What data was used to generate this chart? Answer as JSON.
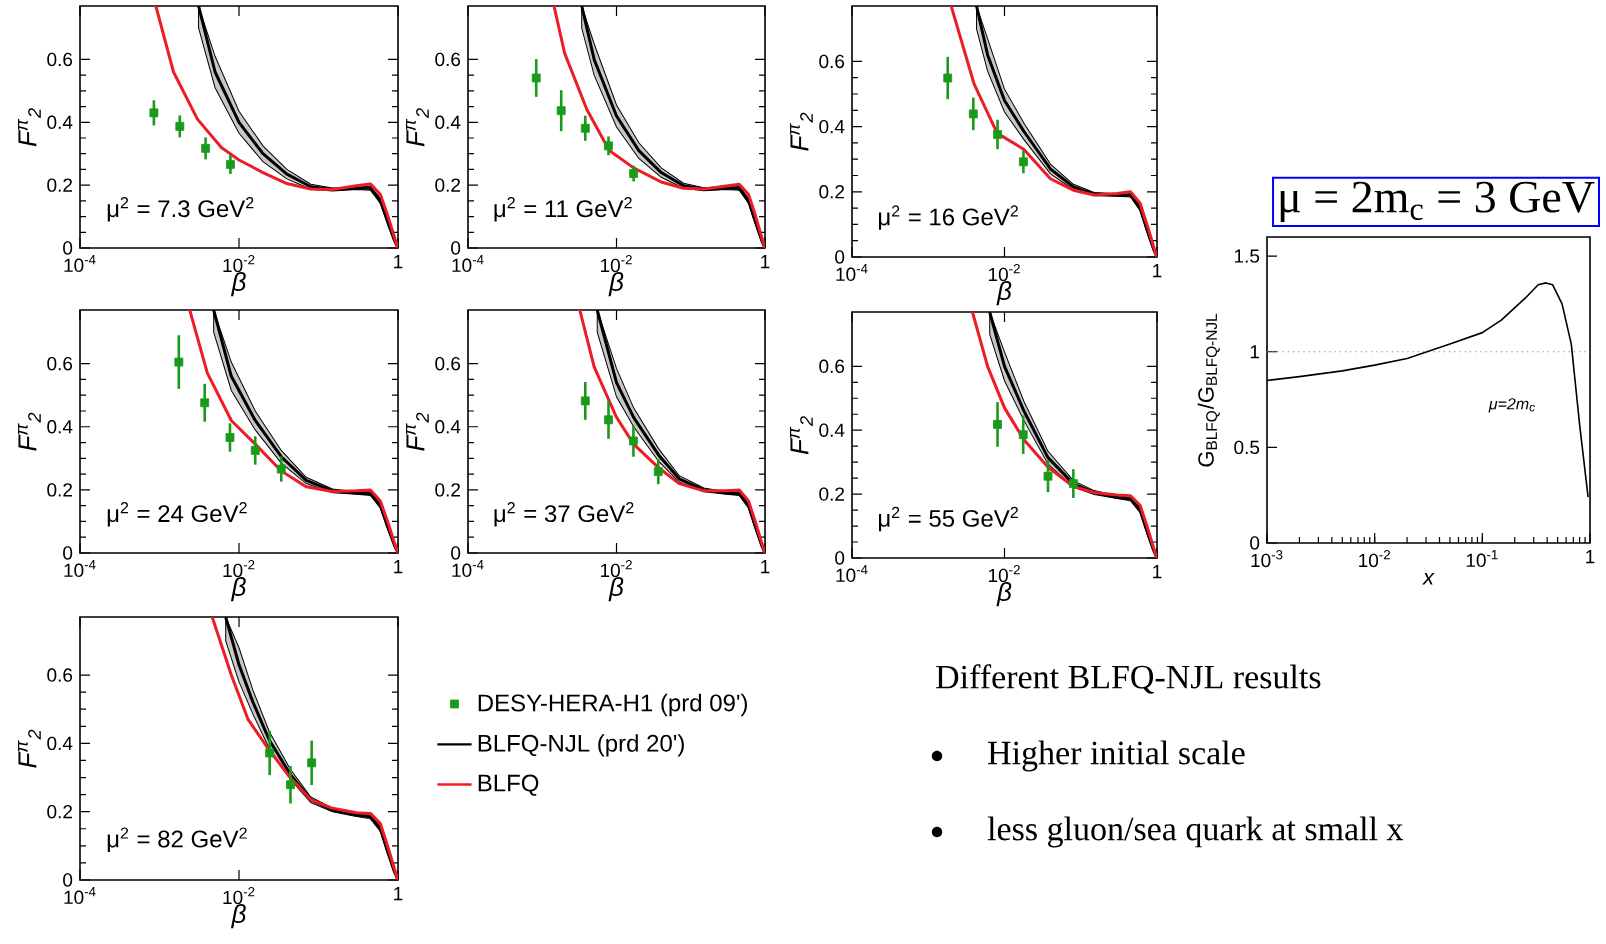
{
  "chart_data": [
    {
      "type": "line",
      "xlabel": "β",
      "ylabel": "F$^{π}$$_{2}$",
      "log": "x",
      "xlim": [
        0.0001,
        1
      ],
      "ylim": [
        0,
        0.77
      ],
      "xticks": [
        {
          "value": 0.0001,
          "label": "10$^{-4}$"
        },
        {
          "value": 0.01,
          "label": "10$^{-2}$"
        },
        1
      ],
      "yticks": [
        0,
        0.2,
        0.4,
        0.6
      ],
      "annotations": [
        "μ$^{2}$ = 7.3 GeV$^{2}$"
      ],
      "series": [
        {
          "type": "scatter",
          "marker": "square",
          "color": "#1a9a1a",
          "x": [
            0.00085,
            0.0018,
            0.0038,
            0.0078
          ],
          "values": [
            0.43,
            0.387,
            0.317,
            0.266
          ],
          "errors": [
            0.04,
            0.035,
            0.035,
            0.03
          ]
        },
        {
          "type": "line",
          "color": "#000000",
          "x": [
            0.0031,
            0.005,
            0.01,
            0.02,
            0.04,
            0.08,
            0.15,
            0.3,
            0.45,
            0.6,
            0.75,
            0.9,
            1
          ],
          "values": [
            0.77,
            0.56,
            0.4,
            0.3,
            0.235,
            0.195,
            0.186,
            0.19,
            0.19,
            0.15,
            0.08,
            0.025,
            0
          ],
          "lower": [
            0.7,
            0.51,
            0.365,
            0.275,
            0.22,
            0.187,
            0.181,
            0.186,
            0.184,
            0.142,
            0.072,
            0.02,
            0
          ],
          "upper": [
            0.77,
            0.61,
            0.435,
            0.325,
            0.25,
            0.203,
            0.191,
            0.194,
            0.196,
            0.158,
            0.088,
            0.03,
            0
          ]
        },
        {
          "type": "line",
          "color": "#ee1c25",
          "x": [
            0.0009,
            0.0015,
            0.003,
            0.006,
            0.01,
            0.02,
            0.04,
            0.08,
            0.15,
            0.3,
            0.45,
            0.6,
            0.75,
            0.9,
            1
          ],
          "values": [
            0.77,
            0.56,
            0.41,
            0.32,
            0.28,
            0.24,
            0.205,
            0.188,
            0.186,
            0.198,
            0.204,
            0.17,
            0.1,
            0.035,
            0
          ]
        }
      ]
    },
    {
      "type": "line",
      "xlabel": "β",
      "ylabel": "F$^{π}$$_{2}$",
      "log": "x",
      "xlim": [
        0.0001,
        1
      ],
      "ylim": [
        0,
        0.77
      ],
      "xticks": [
        {
          "value": 0.0001,
          "label": "10$^{-4}$"
        },
        {
          "value": 0.01,
          "label": "10$^{-2}$"
        },
        1
      ],
      "yticks": [
        0,
        0.2,
        0.4,
        0.6
      ],
      "annotations": [
        "μ$^{2}$ = 11 GeV$^{2}$"
      ],
      "series": [
        {
          "type": "scatter",
          "marker": "square",
          "color": "#1a9a1a",
          "x": [
            0.00083,
            0.0018,
            0.0038,
            0.0078,
            0.017
          ],
          "values": [
            0.541,
            0.437,
            0.381,
            0.325,
            0.237
          ],
          "errors": [
            0.06,
            0.065,
            0.04,
            0.03,
            0.025
          ]
        },
        {
          "type": "line",
          "color": "#000000",
          "x": [
            0.0034,
            0.005,
            0.01,
            0.02,
            0.04,
            0.08,
            0.15,
            0.3,
            0.45,
            0.6,
            0.75,
            0.9,
            1
          ],
          "values": [
            0.77,
            0.6,
            0.42,
            0.31,
            0.24,
            0.198,
            0.187,
            0.19,
            0.19,
            0.15,
            0.08,
            0.025,
            0
          ],
          "lower": [
            0.7,
            0.55,
            0.385,
            0.285,
            0.225,
            0.19,
            0.182,
            0.186,
            0.184,
            0.142,
            0.072,
            0.02,
            0
          ],
          "upper": [
            0.77,
            0.65,
            0.455,
            0.335,
            0.255,
            0.206,
            0.192,
            0.194,
            0.196,
            0.158,
            0.088,
            0.03,
            0
          ]
        },
        {
          "type": "line",
          "color": "#ee1c25",
          "x": [
            0.00144,
            0.002,
            0.004,
            0.008,
            0.017,
            0.04,
            0.08,
            0.15,
            0.3,
            0.45,
            0.6,
            0.75,
            0.9,
            1
          ],
          "values": [
            0.77,
            0.62,
            0.44,
            0.31,
            0.255,
            0.21,
            0.19,
            0.188,
            0.197,
            0.203,
            0.17,
            0.1,
            0.035,
            0
          ]
        }
      ]
    },
    {
      "type": "line",
      "xlabel": "β",
      "ylabel": "F$^{π}$$_{2}$",
      "log": "x",
      "xlim": [
        0.0001,
        1
      ],
      "ylim": [
        0,
        0.77
      ],
      "xticks": [
        {
          "value": 0.0001,
          "label": "10$^{-4}$"
        },
        {
          "value": 0.01,
          "label": "10$^{-2}$"
        },
        1
      ],
      "yticks": [
        0,
        0.2,
        0.4,
        0.6
      ],
      "annotations": [
        "μ$^{2}$ = 16 GeV$^{2}$"
      ],
      "series": [
        {
          "type": "scatter",
          "marker": "square",
          "color": "#1a9a1a",
          "x": [
            0.0018,
            0.0039,
            0.0081,
            0.0177
          ],
          "values": [
            0.549,
            0.439,
            0.376,
            0.292
          ],
          "errors": [
            0.065,
            0.05,
            0.045,
            0.035
          ]
        },
        {
          "type": "line",
          "color": "#000000",
          "x": [
            0.0043,
            0.006,
            0.01,
            0.018,
            0.04,
            0.08,
            0.15,
            0.3,
            0.45,
            0.6,
            0.75,
            0.9,
            1
          ],
          "values": [
            0.77,
            0.62,
            0.48,
            0.385,
            0.27,
            0.215,
            0.193,
            0.19,
            0.19,
            0.15,
            0.08,
            0.025,
            0
          ],
          "lower": [
            0.7,
            0.57,
            0.445,
            0.36,
            0.255,
            0.207,
            0.188,
            0.186,
            0.184,
            0.142,
            0.072,
            0.02,
            0
          ],
          "upper": [
            0.77,
            0.67,
            0.515,
            0.41,
            0.285,
            0.223,
            0.198,
            0.194,
            0.196,
            0.158,
            0.088,
            0.03,
            0
          ]
        },
        {
          "type": "line",
          "color": "#ee1c25",
          "x": [
            0.002,
            0.004,
            0.008,
            0.018,
            0.04,
            0.08,
            0.15,
            0.3,
            0.45,
            0.6,
            0.75,
            0.9,
            1
          ],
          "values": [
            0.77,
            0.53,
            0.38,
            0.33,
            0.24,
            0.205,
            0.19,
            0.195,
            0.2,
            0.165,
            0.095,
            0.033,
            0
          ]
        }
      ]
    },
    {
      "type": "line",
      "xlabel": "β",
      "ylabel": "F$^{π}$$_{2}$",
      "log": "x",
      "xlim": [
        0.0001,
        1
      ],
      "ylim": [
        0,
        0.77
      ],
      "xticks": [
        {
          "value": 0.0001,
          "label": "10$^{-4}$"
        },
        {
          "value": 0.01,
          "label": "10$^{-2}$"
        },
        1
      ],
      "yticks": [
        0,
        0.2,
        0.4,
        0.6
      ],
      "annotations": [
        "μ$^{2}$ = 24 GeV$^{2}$"
      ],
      "series": [
        {
          "type": "scatter",
          "marker": "square",
          "color": "#1a9a1a",
          "x": [
            0.00175,
            0.0037,
            0.0077,
            0.016,
            0.034
          ],
          "values": [
            0.605,
            0.476,
            0.366,
            0.325,
            0.266
          ],
          "errors": [
            0.085,
            0.06,
            0.045,
            0.045,
            0.04
          ]
        },
        {
          "type": "line",
          "color": "#000000",
          "x": [
            0.0048,
            0.008,
            0.016,
            0.034,
            0.07,
            0.15,
            0.3,
            0.45,
            0.6,
            0.75,
            0.9,
            1
          ],
          "values": [
            0.77,
            0.56,
            0.42,
            0.305,
            0.23,
            0.197,
            0.19,
            0.188,
            0.15,
            0.08,
            0.025,
            0
          ],
          "lower": [
            0.7,
            0.515,
            0.39,
            0.285,
            0.22,
            0.191,
            0.186,
            0.182,
            0.142,
            0.072,
            0.02,
            0
          ],
          "upper": [
            0.77,
            0.605,
            0.45,
            0.325,
            0.24,
            0.203,
            0.194,
            0.194,
            0.158,
            0.088,
            0.03,
            0
          ]
        },
        {
          "type": "line",
          "color": "#ee1c25",
          "x": [
            0.0024,
            0.004,
            0.008,
            0.016,
            0.034,
            0.07,
            0.15,
            0.3,
            0.45,
            0.6,
            0.75,
            0.9,
            1
          ],
          "values": [
            0.77,
            0.57,
            0.42,
            0.345,
            0.26,
            0.21,
            0.195,
            0.197,
            0.2,
            0.165,
            0.095,
            0.033,
            0
          ]
        }
      ]
    },
    {
      "type": "line",
      "xlabel": "β",
      "ylabel": "F$^{π}$$_{2}$",
      "log": "x",
      "xlim": [
        0.0001,
        1
      ],
      "ylim": [
        0,
        0.77
      ],
      "xticks": [
        {
          "value": 0.0001,
          "label": "10$^{-4}$"
        },
        {
          "value": 0.01,
          "label": "10$^{-2}$"
        },
        1
      ],
      "yticks": [
        0,
        0.2,
        0.4,
        0.6
      ],
      "annotations": [
        "μ$^{2}$ = 37 GeV$^{2}$"
      ],
      "series": [
        {
          "type": "scatter",
          "marker": "square",
          "color": "#1a9a1a",
          "x": [
            0.0038,
            0.0078,
            0.0169,
            0.0365
          ],
          "values": [
            0.482,
            0.422,
            0.355,
            0.258
          ],
          "errors": [
            0.06,
            0.06,
            0.05,
            0.04
          ]
        },
        {
          "type": "line",
          "color": "#000000",
          "x": [
            0.0055,
            0.01,
            0.017,
            0.037,
            0.07,
            0.15,
            0.3,
            0.45,
            0.6,
            0.75,
            0.9,
            1
          ],
          "values": [
            0.77,
            0.54,
            0.43,
            0.31,
            0.235,
            0.2,
            0.19,
            0.188,
            0.15,
            0.08,
            0.025,
            0
          ],
          "lower": [
            0.7,
            0.495,
            0.4,
            0.29,
            0.225,
            0.194,
            0.186,
            0.182,
            0.142,
            0.072,
            0.02,
            0
          ],
          "upper": [
            0.77,
            0.585,
            0.46,
            0.33,
            0.245,
            0.206,
            0.194,
            0.194,
            0.158,
            0.088,
            0.03,
            0
          ]
        },
        {
          "type": "line",
          "color": "#ee1c25",
          "x": [
            0.0032,
            0.005,
            0.01,
            0.017,
            0.037,
            0.07,
            0.15,
            0.3,
            0.45,
            0.6,
            0.75,
            0.9,
            1
          ],
          "values": [
            0.77,
            0.59,
            0.43,
            0.345,
            0.27,
            0.22,
            0.197,
            0.197,
            0.2,
            0.165,
            0.095,
            0.033,
            0
          ]
        }
      ]
    },
    {
      "type": "line",
      "xlabel": "β",
      "ylabel": "F$^{π}$$_{2}$",
      "log": "x",
      "xlim": [
        0.0001,
        1
      ],
      "ylim": [
        0,
        0.77
      ],
      "xticks": [
        {
          "value": 0.0001,
          "label": "10$^{-4}$"
        },
        {
          "value": 0.01,
          "label": "10$^{-2}$"
        },
        1
      ],
      "yticks": [
        0,
        0.2,
        0.4,
        0.6
      ],
      "annotations": [
        "μ$^{2}$ = 55 GeV$^{2}$"
      ],
      "series": [
        {
          "type": "scatter",
          "marker": "square",
          "color": "#1a9a1a",
          "x": [
            0.0081,
            0.0176,
            0.0372,
            0.08
          ],
          "values": [
            0.418,
            0.386,
            0.256,
            0.233
          ],
          "errors": [
            0.07,
            0.06,
            0.05,
            0.045
          ]
        },
        {
          "type": "line",
          "color": "#000000",
          "x": [
            0.0064,
            0.01,
            0.018,
            0.037,
            0.08,
            0.15,
            0.3,
            0.45,
            0.6,
            0.75,
            0.9,
            1
          ],
          "values": [
            0.77,
            0.6,
            0.46,
            0.315,
            0.232,
            0.205,
            0.19,
            0.185,
            0.15,
            0.08,
            0.025,
            0
          ],
          "lower": [
            0.7,
            0.555,
            0.43,
            0.295,
            0.222,
            0.199,
            0.186,
            0.179,
            0.142,
            0.072,
            0.02,
            0
          ],
          "upper": [
            0.77,
            0.645,
            0.49,
            0.335,
            0.242,
            0.211,
            0.194,
            0.191,
            0.158,
            0.088,
            0.03,
            0
          ]
        },
        {
          "type": "line",
          "color": "#ee1c25",
          "x": [
            0.0038,
            0.006,
            0.01,
            0.018,
            0.037,
            0.08,
            0.15,
            0.3,
            0.45,
            0.6,
            0.75,
            0.9,
            1
          ],
          "values": [
            0.77,
            0.6,
            0.47,
            0.37,
            0.285,
            0.224,
            0.205,
            0.197,
            0.195,
            0.165,
            0.095,
            0.033,
            0
          ]
        }
      ]
    },
    {
      "type": "line",
      "xlabel": "β",
      "ylabel": "F$^{π}$$_{2}$",
      "log": "x",
      "xlim": [
        0.0001,
        1
      ],
      "ylim": [
        0,
        0.77
      ],
      "xticks": [
        {
          "value": 0.0001,
          "label": "10$^{-4}$"
        },
        {
          "value": 0.01,
          "label": "10$^{-2}$"
        },
        1
      ],
      "yticks": [
        0,
        0.2,
        0.4,
        0.6
      ],
      "annotations": [
        "μ$^{2}$ = 82 GeV$^{2}$"
      ],
      "legend": "right",
      "series": [
        {
          "type": "scatter",
          "name": "DESY-HERA-H1 (prd 09')",
          "marker": "square",
          "color": "#1a9a1a",
          "x": [
            0.0243,
            0.0444,
            0.082
          ],
          "values": [
            0.372,
            0.279,
            0.343
          ],
          "errors": [
            0.065,
            0.055,
            0.065
          ]
        },
        {
          "type": "line",
          "name": "BLFQ-NJL (prd 20')",
          "color": "#000000",
          "x": [
            0.0068,
            0.01,
            0.015,
            0.024,
            0.044,
            0.08,
            0.15,
            0.3,
            0.45,
            0.6,
            0.75,
            0.9,
            1
          ],
          "values": [
            0.77,
            0.63,
            0.52,
            0.41,
            0.31,
            0.235,
            0.205,
            0.19,
            0.185,
            0.15,
            0.08,
            0.025,
            0
          ],
          "lower": [
            0.7,
            0.58,
            0.485,
            0.385,
            0.295,
            0.227,
            0.2,
            0.186,
            0.179,
            0.142,
            0.072,
            0.02,
            0
          ],
          "upper": [
            0.77,
            0.68,
            0.555,
            0.435,
            0.325,
            0.243,
            0.21,
            0.194,
            0.191,
            0.158,
            0.088,
            0.03,
            0
          ]
        },
        {
          "type": "line",
          "name": "BLFQ",
          "color": "#ee1c25",
          "x": [
            0.0046,
            0.008,
            0.013,
            0.024,
            0.044,
            0.08,
            0.15,
            0.3,
            0.45,
            0.6,
            0.75,
            0.9,
            1
          ],
          "values": [
            0.77,
            0.6,
            0.47,
            0.38,
            0.3,
            0.235,
            0.21,
            0.197,
            0.195,
            0.165,
            0.095,
            0.033,
            0
          ]
        }
      ]
    },
    {
      "type": "line",
      "title": "μ = 2m$_{c}$ = 3 GeV",
      "xlabel": "x",
      "ylabel": "G$_{BLFQ}$/G$_{BLFQ-NJL}$",
      "log": "x",
      "xlim": [
        0.001,
        1
      ],
      "ylim": [
        0,
        1.6
      ],
      "xticks": [
        {
          "value": 0.001,
          "label": "10$^{-3}$"
        },
        {
          "value": 0.01,
          "label": "10$^{-2}$"
        },
        {
          "value": 0.1,
          "label": "10$^{-1}$"
        },
        1
      ],
      "yticks": [
        0,
        0.5,
        1,
        1.5
      ],
      "annotations": [
        "μ=2m$_{c}$"
      ],
      "ref_lines": [
        {
          "axis": "y",
          "value": 1,
          "color": "#808080",
          "line_style": "dotted"
        }
      ],
      "series": [
        {
          "color": "#000000",
          "x": [
            0.001,
            0.002,
            0.005,
            0.01,
            0.02,
            0.05,
            0.1,
            0.15,
            0.25,
            0.33,
            0.39,
            0.45,
            0.55,
            0.67,
            0.8,
            0.96
          ],
          "values": [
            0.85,
            0.87,
            0.9,
            0.93,
            0.965,
            1.04,
            1.1,
            1.165,
            1.28,
            1.35,
            1.36,
            1.35,
            1.25,
            1.04,
            0.62,
            0.24
          ]
        }
      ]
    },
    {
      "type": "other",
      "title": "Different BLFQ-NJL results",
      "annotations": [
        "Higher initial scale",
        "less gluon/sea quark at small x"
      ]
    }
  ]
}
